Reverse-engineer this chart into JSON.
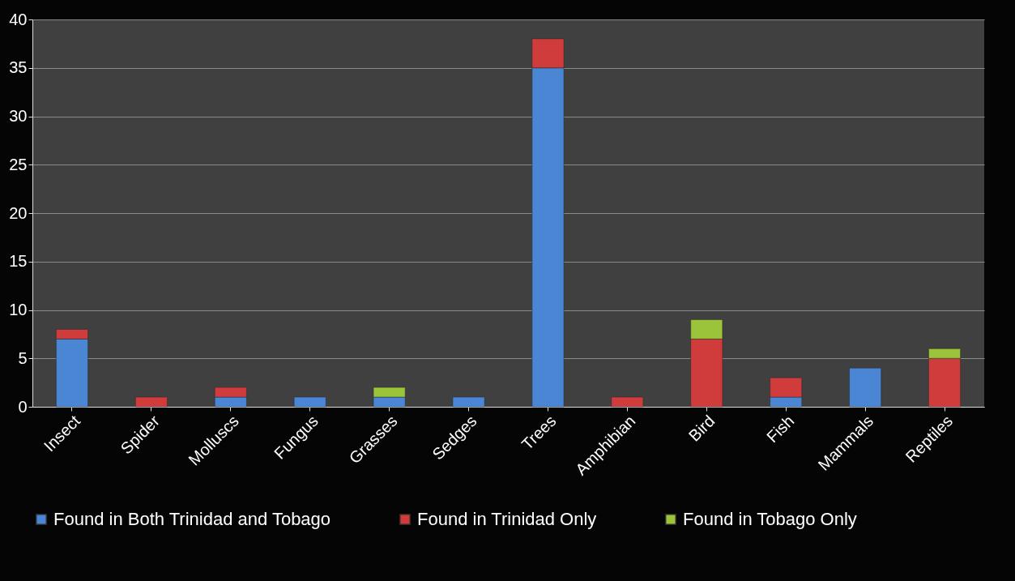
{
  "chart_data": {
    "type": "bar",
    "stacked": true,
    "categories": [
      "Insect",
      "Spider",
      "Molluscs",
      "Fungus",
      "Grasses",
      "Sedges",
      "Trees",
      "Amphibian",
      "Bird",
      "Fish",
      "Mammals",
      "Reptiles"
    ],
    "series": [
      {
        "name": "Found in Both Trinidad and Tobago",
        "color": "#4a86d4",
        "values": [
          7,
          null,
          1,
          1,
          1,
          1,
          35,
          null,
          null,
          1,
          4,
          null
        ]
      },
      {
        "name": "Found in Trinidad Only",
        "color": "#d03c3c",
        "values": [
          1,
          1,
          1,
          null,
          null,
          null,
          3,
          1,
          7,
          2,
          null,
          5
        ]
      },
      {
        "name": "Found in Tobago Only",
        "color": "#9bc43a",
        "values": [
          null,
          null,
          null,
          null,
          1,
          null,
          null,
          null,
          2,
          null,
          null,
          1
        ]
      }
    ],
    "ylim": [
      0,
      40
    ],
    "yticks": [
      0,
      5,
      10,
      15,
      20,
      25,
      30,
      35,
      40
    ],
    "grid": "y",
    "legend": "bottom"
  }
}
